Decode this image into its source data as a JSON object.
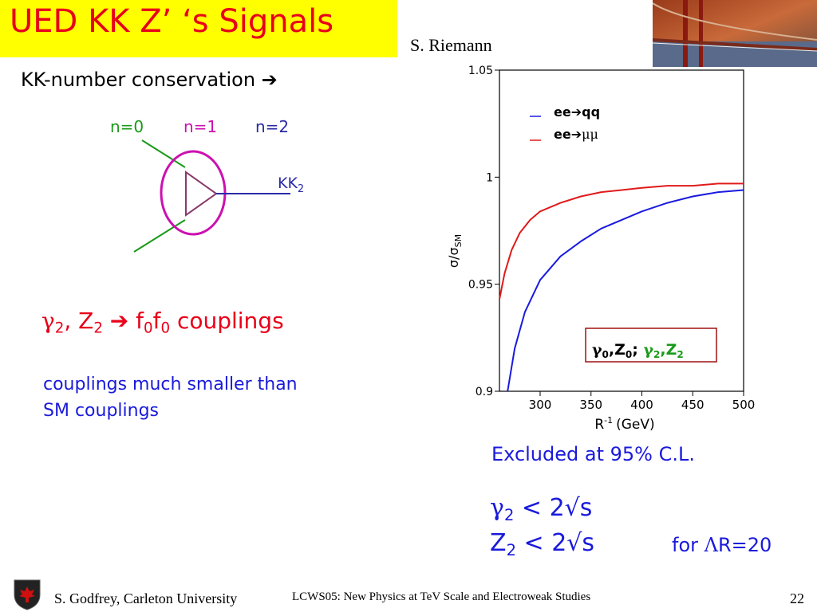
{
  "header": {
    "title": "UED KK Z’ ‘s Signals",
    "speaker": "S. Riemann",
    "title_bg": "#ffff00",
    "title_color": "#e8001a"
  },
  "left": {
    "heading": "KK-number conservation",
    "heading_arrow": "➔",
    "diagram": {
      "n0": "n=0",
      "n1": "n=1",
      "n2": "n=2",
      "kk_label": "KK",
      "kk_sub": "2",
      "colors": {
        "n0": "#1a9a1a",
        "n1": "#cc10b0",
        "n2": "#2a2aa8",
        "triangle": "#8a3a6a"
      }
    },
    "coupling": {
      "gamma": "γ",
      "gamma_sub": "2",
      "comma": ", ",
      "z": "Z",
      "z_sub": "2",
      "arrow": "➔",
      "f1": "f",
      "f1_sub": "0",
      "f2": "f",
      "f2_sub": "0",
      "rest": " couplings"
    },
    "note_line1": "couplings much smaller than",
    "note_line2": "SM couplings"
  },
  "chart_data": {
    "type": "line",
    "xlabel": "R",
    "xlabel_sup": "-1",
    "xlabel_unit": "(GeV)",
    "ylabel": "σ/σ",
    "ylabel_sub": "SM",
    "xlim": [
      260,
      500
    ],
    "ylim": [
      0.9,
      1.05
    ],
    "x_ticks": [
      "300",
      "350",
      "400",
      "450",
      "500"
    ],
    "y_ticks": [
      "0.9",
      "0.95",
      "1",
      "1.05"
    ],
    "legend_items": [
      {
        "label_prefix": "ee",
        "arrow": "➔",
        "label_suffix": "qq",
        "color": "#1a1ae0"
      },
      {
        "label_prefix": "ee",
        "arrow": "➔",
        "label_suffix": "μμ",
        "color": "#e01a1a"
      }
    ],
    "annotation": {
      "p1": "γ",
      "s1": "0",
      "p2": ",Z",
      "s2": "0",
      "p3": "; ",
      "p4": "γ",
      "s4": "2",
      "p5": ",Z",
      "s5": "2"
    },
    "series": [
      {
        "color": "#1a1ae0",
        "x": [
          268,
          275,
          285,
          300,
          320,
          340,
          360,
          380,
          400,
          425,
          450,
          475,
          500
        ],
        "y": [
          0.9,
          0.92,
          0.937,
          0.952,
          0.963,
          0.97,
          0.976,
          0.98,
          0.984,
          0.988,
          0.991,
          0.993,
          0.994
        ]
      },
      {
        "color": "#e01a1a",
        "x": [
          260,
          265,
          272,
          280,
          290,
          300,
          320,
          340,
          360,
          380,
          400,
          425,
          450,
          475,
          500
        ],
        "y": [
          0.943,
          0.955,
          0.966,
          0.974,
          0.98,
          0.984,
          0.988,
          0.991,
          0.993,
          0.994,
          0.995,
          0.996,
          0.996,
          0.997,
          0.997
        ]
      }
    ]
  },
  "results": {
    "excluded": "Excluded at 95% C.L.",
    "limit1_sym": "γ",
    "limit1_sub": "2",
    "limit1_rest": " < 2√s",
    "limit2_sym": "Z",
    "limit2_sub": "2",
    "limit2_rest": " < 2√s",
    "for_prefix": "for ",
    "for_lambda": "Λ",
    "for_rest": "R=20"
  },
  "footer": {
    "left": "S. Godfrey, Carleton University",
    "middle": "LCWS05: New Physics at TeV Scale and Electroweak Studies",
    "page": "22"
  }
}
